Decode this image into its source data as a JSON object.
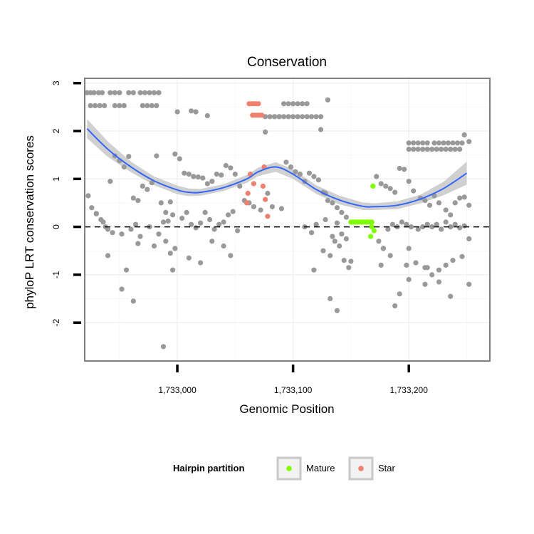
{
  "chart_data": {
    "type": "scatter",
    "title": "Conservation",
    "xlabel": "Genomic Position",
    "ylabel": "phyloP LRT conservation scores",
    "xlim": [
      1732920,
      1733270
    ],
    "ylim": [
      -2.8,
      3.1
    ],
    "x_ticks": [
      1733000,
      1733100,
      1733200
    ],
    "x_tick_labels": [
      "1,733,000",
      "1,733,100",
      "1,733,200"
    ],
    "y_ticks": [
      -2,
      -1,
      0,
      1,
      2,
      3
    ],
    "y_tick_labels": [
      "-2",
      "-1",
      "0",
      "1",
      "2",
      "3"
    ],
    "grid": true,
    "reference_line": {
      "y": 0,
      "style": "dashed"
    },
    "colors": {
      "other": "#999999",
      "mature": "#7fff00",
      "star": "#f08070",
      "smooth": "#3366ff",
      "band": "#c8c8c8"
    },
    "legend": {
      "title": "Hairpin partition",
      "position": "bottom",
      "entries": [
        {
          "label": "Mature",
          "color": "#7fff00"
        },
        {
          "label": "Star",
          "color": "#f08070"
        }
      ]
    },
    "smooth": {
      "x": [
        1732922,
        1732940,
        1732960,
        1732980,
        1733000,
        1733010,
        1733020,
        1733040,
        1733060,
        1733070,
        1733085,
        1733100,
        1733120,
        1733140,
        1733160,
        1733170,
        1733190,
        1733210,
        1733230,
        1733250
      ],
      "y": [
        2.05,
        1.62,
        1.25,
        0.96,
        0.77,
        0.72,
        0.72,
        0.82,
        1.0,
        1.15,
        1.25,
        1.1,
        0.78,
        0.56,
        0.43,
        0.42,
        0.45,
        0.58,
        0.8,
        1.12
      ],
      "ci_upper": [
        2.25,
        1.78,
        1.36,
        1.05,
        0.86,
        0.8,
        0.79,
        0.89,
        1.08,
        1.24,
        1.35,
        1.2,
        0.87,
        0.65,
        0.51,
        0.49,
        0.53,
        0.67,
        0.94,
        1.36
      ],
      "ci_lower": [
        1.85,
        1.46,
        1.14,
        0.87,
        0.68,
        0.64,
        0.65,
        0.75,
        0.92,
        1.06,
        1.15,
        1.0,
        0.69,
        0.47,
        0.35,
        0.35,
        0.37,
        0.49,
        0.66,
        0.88
      ]
    },
    "series": [
      {
        "name": "Mature",
        "color": "#7fff00",
        "x": [
          1733150,
          1733152,
          1733154,
          1733156,
          1733158,
          1733160,
          1733162,
          1733164,
          1733166,
          1733168,
          1733169,
          1733168,
          1733170,
          1733167
        ],
        "y": [
          0.1,
          0.1,
          0.1,
          0.1,
          0.1,
          0.1,
          0.1,
          0.1,
          0.1,
          0.1,
          0.85,
          0.0,
          -0.08,
          -0.2
        ]
      },
      {
        "name": "Star",
        "color": "#f08070",
        "x": [
          1733062,
          1733064,
          1733066,
          1733068,
          1733070,
          1733065,
          1733067,
          1733069,
          1733071,
          1733073,
          1733063,
          1733066,
          1733061,
          1733060,
          1733075,
          1733074,
          1733076,
          1733078
        ],
        "y": [
          2.57,
          2.57,
          2.57,
          2.57,
          2.57,
          2.33,
          2.33,
          2.33,
          2.33,
          2.33,
          1.1,
          0.9,
          0.7,
          0.5,
          1.25,
          0.85,
          0.57,
          0.22
        ]
      },
      {
        "name": "",
        "color": "#999999",
        "x": [
          1732922,
          1732925,
          1732928,
          1732932,
          1732935,
          1732942,
          1732946,
          1732950,
          1732958,
          1732962,
          1732968,
          1732972,
          1732976,
          1732980,
          1732984,
          1732925,
          1732929,
          1732933,
          1732937,
          1732946,
          1732950,
          1732954,
          1732970,
          1732974,
          1732978,
          1732982,
          1733000,
          1733012,
          1733016,
          1733026,
          1733076,
          1733080,
          1733084,
          1733088,
          1733092,
          1733096,
          1733100,
          1733104,
          1733108,
          1733112,
          1733084,
          1733088,
          1733092,
          1733096,
          1733100,
          1733104,
          1733108,
          1733112,
          1733116,
          1733120,
          1733124,
          1733076,
          1733130,
          1733200,
          1733204,
          1733208,
          1733212,
          1733216,
          1733222,
          1733226,
          1733230,
          1733234,
          1733238,
          1733242,
          1733246,
          1733200,
          1733204,
          1733208,
          1733212,
          1733216,
          1733220,
          1733224,
          1733228,
          1733232,
          1733236,
          1733240,
          1733244,
          1733248,
          1733252,
          1733124,
          1732923,
          1732926,
          1732930,
          1732934,
          1732938,
          1732942,
          1732946,
          1732950,
          1732954,
          1732958,
          1732962,
          1732966,
          1732970,
          1732974,
          1732978,
          1732982,
          1732986,
          1732990,
          1732994,
          1732998,
          1733002,
          1733006,
          1733010,
          1733014,
          1733018,
          1733022,
          1733026,
          1733030,
          1733034,
          1733038,
          1733042,
          1733046,
          1733050,
          1733054,
          1733058,
          1733062,
          1733066,
          1733072,
          1733078,
          1733082,
          1733090,
          1733094,
          1733098,
          1733102,
          1733106,
          1733110,
          1733114,
          1733118,
          1733122,
          1733126,
          1733128,
          1733130,
          1733134,
          1733138,
          1733142,
          1733146,
          1733172,
          1733176,
          1733180,
          1733184,
          1733188,
          1733192,
          1733196,
          1733200,
          1733204,
          1733210,
          1733214,
          1733218,
          1733222,
          1733226,
          1733232,
          1733236,
          1733240,
          1733244,
          1733248,
          1733252,
          1732930,
          1732936,
          1732940,
          1732944,
          1732952,
          1732960,
          1732964,
          1732968,
          1732976,
          1732984,
          1732988,
          1732992,
          1732996,
          1733004,
          1733008,
          1733012,
          1733016,
          1733020,
          1733024,
          1733028,
          1733032,
          1733036,
          1733040,
          1733044,
          1733048,
          1733052,
          1733110,
          1733116,
          1733120,
          1733128,
          1733134,
          1733138,
          1733142,
          1733146,
          1733174,
          1733178,
          1733182,
          1733186,
          1733190,
          1733194,
          1733198,
          1733202,
          1733208,
          1733212,
          1733216,
          1733220,
          1733224,
          1733228,
          1733232,
          1733236,
          1733240,
          1733244,
          1733248,
          1733252,
          1732940,
          1732956,
          1732966,
          1732980,
          1732990,
          1732994,
          1732998,
          1733010,
          1733020,
          1733030,
          1733040,
          1733046,
          1733118,
          1733126,
          1733132,
          1733136,
          1733140,
          1733144,
          1733148,
          1733178,
          1733184,
          1733192,
          1733198,
          1733206,
          1733214,
          1733220,
          1733226,
          1733232,
          1733238,
          1733246,
          1733252,
          1732952,
          1732962,
          1732988,
          1732996,
          1733132,
          1733138,
          1733150,
          1733176,
          1733200,
          1733214,
          1733226,
          1733236,
          1733188,
          1733200,
          1733216
        ],
        "y": [
          2.8,
          2.8,
          2.8,
          2.8,
          2.8,
          2.8,
          2.8,
          2.8,
          2.8,
          2.8,
          2.8,
          2.8,
          2.8,
          2.8,
          2.8,
          2.53,
          2.53,
          2.53,
          2.53,
          2.53,
          2.53,
          2.53,
          2.53,
          2.53,
          2.53,
          2.53,
          2.4,
          2.42,
          2.4,
          2.32,
          2.3,
          2.3,
          2.3,
          2.3,
          2.57,
          2.57,
          2.57,
          2.57,
          2.57,
          2.57,
          2.3,
          2.3,
          2.3,
          2.3,
          2.3,
          2.3,
          2.3,
          2.3,
          2.3,
          2.3,
          2.3,
          1.98,
          2.65,
          1.75,
          1.75,
          1.75,
          1.75,
          1.75,
          1.75,
          1.75,
          1.75,
          1.75,
          1.75,
          1.75,
          1.75,
          1.62,
          1.62,
          1.62,
          1.62,
          1.62,
          1.62,
          1.62,
          1.62,
          1.62,
          1.62,
          1.62,
          1.62,
          1.92,
          1.78,
          2.03,
          0.65,
          0.4,
          0.27,
          0.15,
          0.0,
          0.95,
          1.48,
          1.38,
          1.25,
          1.47,
          0.6,
          0.55,
          0.85,
          0.78,
          0.92,
          1.48,
          0.5,
          0.3,
          0.52,
          1.52,
          1.42,
          1.12,
          1.1,
          1.05,
          1.04,
          1.02,
          0.9,
          0.95,
          1.1,
          1.08,
          1.28,
          1.23,
          1.1,
          0.85,
          0.55,
          0.5,
          0.42,
          0.35,
          0.7,
          0.42,
          0.38,
          1.35,
          1.25,
          1.15,
          1.1,
          0.95,
          1.12,
          1.05,
          0.98,
          0.72,
          0.7,
          0.55,
          0.5,
          0.4,
          0.3,
          0.2,
          1.05,
          0.9,
          0.85,
          0.8,
          0.72,
          1.22,
          1.2,
          0.95,
          0.75,
          0.6,
          0.55,
          0.45,
          0.65,
          0.5,
          0.35,
          0.25,
          0.5,
          0.6,
          0.62,
          0.45,
          0.28,
          0.1,
          -0.05,
          -0.12,
          -0.15,
          -0.05,
          0.05,
          -0.2,
          0.0,
          -0.15,
          0.1,
          0.12,
          0.25,
          0.18,
          0.3,
          0.05,
          -0.02,
          0.08,
          0.3,
          0.15,
          -0.05,
          0.05,
          0.1,
          0.25,
          0.32,
          -0.08,
          0.0,
          -0.12,
          0.05,
          0.15,
          -0.2,
          0.08,
          -0.15,
          -0.25,
          -0.3,
          -0.45,
          -0.05,
          0.05,
          0.0,
          0.1,
          0.05,
          0.0,
          -0.05,
          0.0,
          0.05,
          0.0,
          0.05,
          -0.05,
          0.1,
          0.0,
          0.05,
          -0.02,
          0.02,
          -0.25,
          -0.6,
          -0.9,
          -0.35,
          -0.4,
          -0.3,
          -0.55,
          -0.45,
          -0.65,
          -0.75,
          -0.3,
          -0.4,
          -0.6,
          -0.9,
          -0.5,
          -0.6,
          -0.3,
          -0.4,
          -0.7,
          -0.85,
          -0.45,
          -0.6,
          -1.4,
          -0.8,
          -0.75,
          -0.85,
          -1.0,
          -0.9,
          -0.8,
          -0.7,
          -0.62,
          -1.2,
          -1.3,
          -1.55,
          -2.5,
          -0.9,
          -1.5,
          -1.75,
          -0.72,
          -0.8,
          -1.1,
          -1.2,
          -1.15,
          -1.45,
          -1.65,
          -0.45,
          -0.85
        ]
      }
    ]
  }
}
